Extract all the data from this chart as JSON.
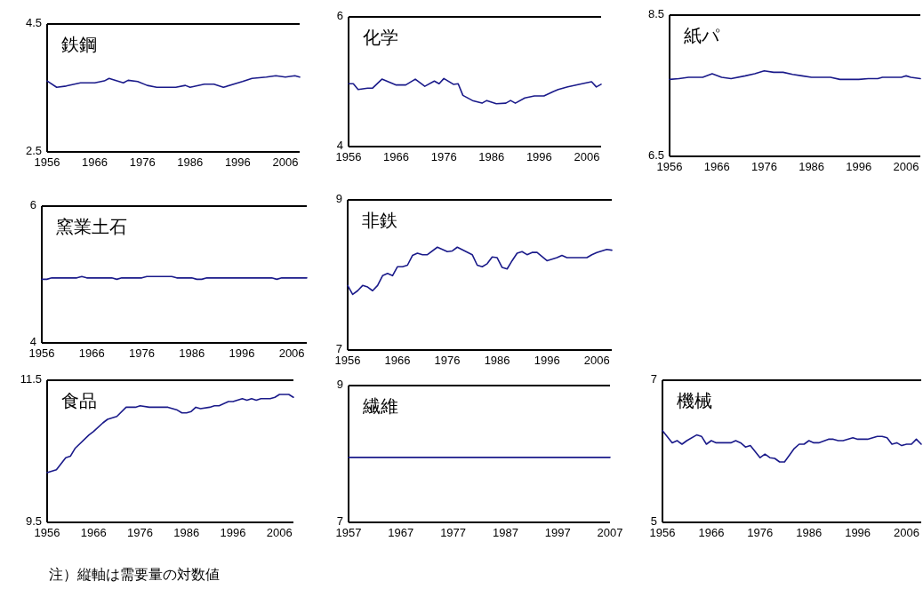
{
  "chart_data": [
    {
      "type": "line",
      "title": "鉄鋼",
      "x": [
        1956,
        1958,
        1960,
        1963,
        1966,
        1968,
        1969,
        1972,
        1973,
        1975,
        1977,
        1979,
        1983,
        1985,
        1986,
        1989,
        1991,
        1993,
        1997,
        1999,
        2002,
        2004,
        2006,
        2008,
        2009
      ],
      "series": [
        {
          "color": "#1a1a8a",
          "values": [
            3.61,
            3.51,
            3.53,
            3.58,
            3.58,
            3.61,
            3.65,
            3.58,
            3.62,
            3.6,
            3.54,
            3.51,
            3.51,
            3.54,
            3.51,
            3.56,
            3.56,
            3.51,
            3.6,
            3.65,
            3.67,
            3.69,
            3.67,
            3.69,
            3.67
          ]
        }
      ],
      "xlim": [
        1956,
        2009
      ],
      "xticks": [
        1956,
        1966,
        1976,
        1986,
        1996,
        2006
      ],
      "ylim": [
        2.5,
        4.5
      ],
      "yticks": [
        2.5,
        4.5
      ]
    },
    {
      "type": "line",
      "title": "化学",
      "x": [
        1956,
        1957,
        1958,
        1960,
        1961,
        1963,
        1964,
        1966,
        1968,
        1970,
        1972,
        1974,
        1975,
        1976,
        1978,
        1979,
        1980,
        1982,
        1984,
        1985,
        1987,
        1989,
        1990,
        1991,
        1993,
        1995,
        1997,
        1999,
        2000,
        2002,
        2005,
        2007,
        2008,
        2009
      ],
      "series": [
        {
          "color": "#1a1a8a",
          "values": [
            4.97,
            4.97,
            4.88,
            4.9,
            4.9,
            5.04,
            5.01,
            4.95,
            4.95,
            5.04,
            4.93,
            5.01,
            4.97,
            5.05,
            4.96,
            4.97,
            4.79,
            4.71,
            4.67,
            4.71,
            4.66,
            4.67,
            4.71,
            4.67,
            4.75,
            4.78,
            4.78,
            4.85,
            4.88,
            4.92,
            4.97,
            5.0,
            4.92,
            4.96
          ]
        }
      ],
      "xlim": [
        1956,
        2009
      ],
      "xticks": [
        1956,
        1966,
        1976,
        1986,
        1996,
        2006
      ],
      "ylim": [
        4,
        6
      ],
      "yticks": [
        4,
        6
      ]
    },
    {
      "type": "line",
      "title": "紙パ",
      "x": [
        1956,
        1958,
        1960,
        1963,
        1965,
        1967,
        1969,
        1972,
        1974,
        1976,
        1978,
        1980,
        1982,
        1984,
        1986,
        1990,
        1992,
        1996,
        1998,
        2000,
        2001,
        2005,
        2006,
        2007,
        2009
      ],
      "series": [
        {
          "color": "#1a1a8a",
          "values": [
            7.59,
            7.6,
            7.62,
            7.62,
            7.67,
            7.62,
            7.6,
            7.64,
            7.67,
            7.71,
            7.69,
            7.69,
            7.66,
            7.64,
            7.62,
            7.62,
            7.59,
            7.59,
            7.6,
            7.6,
            7.62,
            7.62,
            7.64,
            7.62,
            7.6
          ]
        }
      ],
      "xlim": [
        1956,
        2009
      ],
      "xticks": [
        1956,
        1966,
        1976,
        1986,
        1996,
        2006
      ],
      "ylim": [
        6.5,
        8.5
      ],
      "yticks": [
        6.5,
        8.5
      ]
    },
    {
      "type": "line",
      "title": "窯業土石",
      "x": [
        1956,
        1957,
        1958,
        1963,
        1964,
        1965,
        1970,
        1971,
        1972,
        1976,
        1977,
        1982,
        1983,
        1986,
        1987,
        1988,
        1989,
        2002,
        2003,
        2004,
        2009
      ],
      "series": [
        {
          "color": "#1a1a8a",
          "values": [
            4.93,
            4.93,
            4.95,
            4.95,
            4.97,
            4.95,
            4.95,
            4.93,
            4.95,
            4.95,
            4.97,
            4.97,
            4.95,
            4.95,
            4.93,
            4.93,
            4.95,
            4.95,
            4.93,
            4.95,
            4.95
          ]
        }
      ],
      "xlim": [
        1956,
        2009
      ],
      "xticks": [
        1956,
        1966,
        1976,
        1986,
        1996,
        2006
      ],
      "ylim": [
        4,
        6
      ],
      "yticks": [
        4,
        6
      ]
    },
    {
      "type": "line",
      "title": "非鉄",
      "x": [
        1956,
        1957,
        1958,
        1959,
        1960,
        1961,
        1962,
        1963,
        1964,
        1965,
        1966,
        1967,
        1968,
        1969,
        1970,
        1971,
        1972,
        1974,
        1975,
        1976,
        1977,
        1978,
        1981,
        1982,
        1983,
        1984,
        1985,
        1986,
        1987,
        1988,
        1989,
        1990,
        1991,
        1992,
        1993,
        1994,
        1996,
        1997,
        1998,
        1999,
        2000,
        2004,
        2005,
        2006,
        2008,
        2009
      ],
      "series": [
        {
          "color": "#1a1a8a",
          "values": [
            7.86,
            7.74,
            7.79,
            7.86,
            7.84,
            7.79,
            7.86,
            7.99,
            8.02,
            7.99,
            8.11,
            8.11,
            8.13,
            8.26,
            8.29,
            8.27,
            8.27,
            8.37,
            8.34,
            8.31,
            8.32,
            8.37,
            8.27,
            8.13,
            8.11,
            8.15,
            8.24,
            8.23,
            8.1,
            8.08,
            8.19,
            8.29,
            8.31,
            8.27,
            8.3,
            8.3,
            8.19,
            8.21,
            8.23,
            8.26,
            8.23,
            8.23,
            8.27,
            8.3,
            8.34,
            8.33
          ]
        }
      ],
      "xlim": [
        1956,
        2009
      ],
      "xticks": [
        1956,
        1966,
        1976,
        1986,
        1996,
        2006
      ],
      "ylim": [
        7,
        9
      ],
      "yticks": [
        7,
        9
      ]
    },
    {
      "type": "line",
      "title": "食品",
      "x": [
        1956,
        1958,
        1960,
        1961,
        1962,
        1965,
        1966,
        1968,
        1969,
        1971,
        1973,
        1975,
        1976,
        1978,
        1982,
        1984,
        1985,
        1986,
        1987,
        1988,
        1989,
        1991,
        1992,
        1993,
        1995,
        1996,
        1998,
        1999,
        2000,
        2001,
        2002,
        2004,
        2005,
        2006,
        2008,
        2009
      ],
      "series": [
        {
          "color": "#1a1a8a",
          "values": [
            10.2,
            10.24,
            10.41,
            10.43,
            10.54,
            10.73,
            10.78,
            10.9,
            10.95,
            10.99,
            11.12,
            11.12,
            11.14,
            11.12,
            11.12,
            11.08,
            11.04,
            11.04,
            11.06,
            11.12,
            11.1,
            11.12,
            11.14,
            11.14,
            11.2,
            11.2,
            11.24,
            11.22,
            11.24,
            11.22,
            11.24,
            11.24,
            11.26,
            11.3,
            11.3,
            11.26
          ]
        }
      ],
      "xlim": [
        1956,
        2009
      ],
      "xticks": [
        1956,
        1966,
        1976,
        1986,
        1996,
        2006
      ],
      "ylim": [
        9.5,
        11.5
      ],
      "yticks": [
        9.5,
        11.5
      ]
    },
    {
      "type": "line",
      "title": "繊維",
      "x": [
        1957,
        2007
      ],
      "series": [
        {
          "color": "#1a1a8a",
          "values": [
            7.95,
            7.95
          ]
        }
      ],
      "xlim": [
        1957,
        2007
      ],
      "xticks": [
        1957,
        1967,
        1977,
        1987,
        1997,
        2007
      ],
      "ylim": [
        7,
        9
      ],
      "yticks": [
        7,
        9
      ]
    },
    {
      "type": "line",
      "title": "機械",
      "x": [
        1956,
        1958,
        1959,
        1960,
        1961,
        1963,
        1964,
        1965,
        1966,
        1967,
        1970,
        1971,
        1972,
        1973,
        1974,
        1976,
        1977,
        1978,
        1979,
        1980,
        1981,
        1983,
        1984,
        1985,
        1986,
        1987,
        1988,
        1990,
        1991,
        1992,
        1993,
        1995,
        1996,
        1998,
        2000,
        2001,
        2002,
        2003,
        2004,
        2005,
        2006,
        2007,
        2008,
        2009
      ],
      "series": [
        {
          "color": "#1a1a8a",
          "values": [
            6.29,
            6.12,
            6.15,
            6.1,
            6.15,
            6.23,
            6.21,
            6.1,
            6.15,
            6.12,
            6.12,
            6.15,
            6.12,
            6.06,
            6.08,
            5.91,
            5.96,
            5.91,
            5.9,
            5.85,
            5.85,
            6.04,
            6.1,
            6.1,
            6.15,
            6.12,
            6.12,
            6.17,
            6.17,
            6.15,
            6.15,
            6.19,
            6.17,
            6.17,
            6.21,
            6.21,
            6.19,
            6.1,
            6.12,
            6.08,
            6.1,
            6.1,
            6.17,
            6.1
          ]
        }
      ],
      "xlim": [
        1956,
        2009
      ],
      "xticks": [
        1956,
        1966,
        1976,
        1986,
        1996,
        2006
      ],
      "ylim": [
        5,
        7
      ],
      "yticks": [
        5,
        7
      ],
      "annotations": [
        "注）縦軸は需要量の対数値"
      ]
    }
  ]
}
